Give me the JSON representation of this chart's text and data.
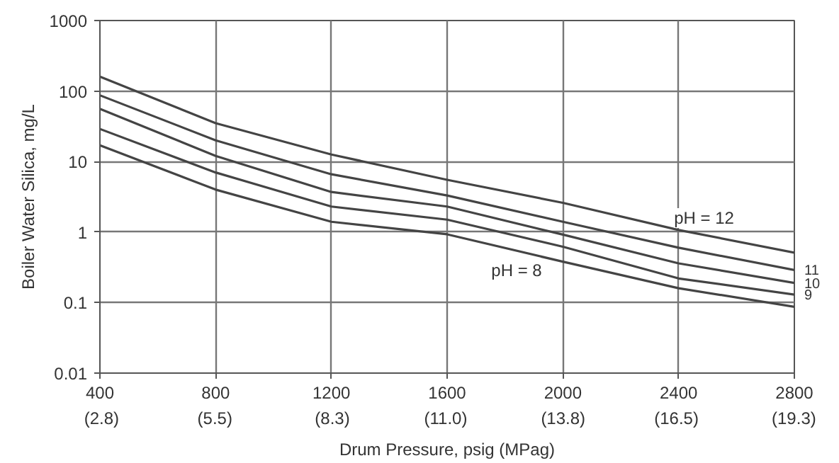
{
  "chart_data": {
    "type": "line",
    "xlabel": "Drum Pressure, psig (MPag)",
    "ylabel": "Boiler Water Silica, mg/L",
    "x": [
      400,
      800,
      1200,
      1600,
      2000,
      2400,
      2800
    ],
    "series": [
      {
        "name": "pH = 12",
        "color": "#444444",
        "values": [
          160,
          35,
          12.6,
          5.5,
          2.6,
          1.07,
          0.51
        ]
      },
      {
        "name": "11",
        "color": "#444444",
        "values": [
          87,
          20,
          6.6,
          3.3,
          1.4,
          0.6,
          0.29
        ]
      },
      {
        "name": "10",
        "color": "#444444",
        "values": [
          56,
          12,
          3.7,
          2.3,
          0.92,
          0.36,
          0.19
        ]
      },
      {
        "name": "9",
        "color": "#444444",
        "values": [
          29,
          7,
          2.3,
          1.5,
          0.62,
          0.22,
          0.13
        ]
      },
      {
        "name": "pH = 8",
        "color": "#444444",
        "values": [
          17,
          4,
          1.4,
          0.93,
          0.38,
          0.16,
          0.087
        ]
      }
    ],
    "log": "y",
    "grid": true,
    "line_style": "solid",
    "xlim": [
      400,
      2800
    ],
    "ylim": [
      0.01,
      1000
    ],
    "xticks": [
      400,
      800,
      1200,
      1600,
      2000,
      2400,
      2800
    ],
    "x2lim": [
      2.76,
      19.31
    ],
    "x2ticks": [
      {
        "value": 2.8,
        "label": "(2.8)"
      },
      {
        "value": 5.5,
        "label": "(5.5)"
      },
      {
        "value": 8.3,
        "label": "(8.3)"
      },
      {
        "value": 11.0,
        "label": "(11.0)"
      },
      {
        "value": 13.8,
        "label": "(13.8)"
      },
      {
        "value": 16.5,
        "label": "(16.5)"
      },
      {
        "value": 19.3,
        "label": "(19.3)"
      }
    ],
    "yticks": [
      0.01,
      0.1,
      1,
      10,
      100,
      1000
    ]
  }
}
